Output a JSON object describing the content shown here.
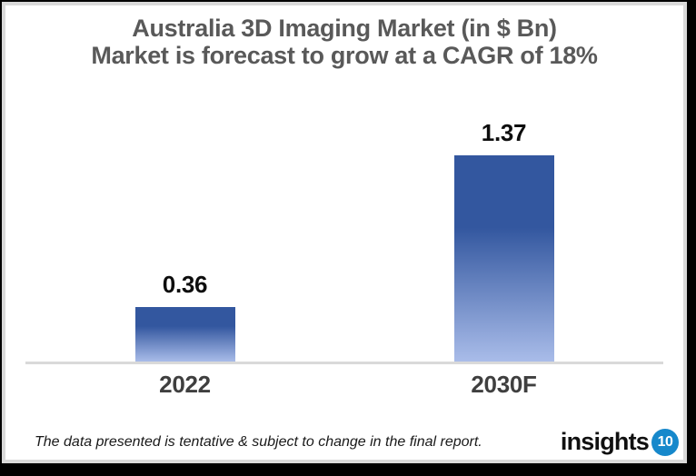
{
  "title": {
    "line1": "Australia 3D Imaging Market (in $ Bn)",
    "line2": "Market is forecast to grow at a CAGR of 18%"
  },
  "chart_data": {
    "type": "bar",
    "title": "Australia 3D Imaging Market (in $ Bn)",
    "subtitle": "Market is forecast to grow at a CAGR of 18%",
    "categories": [
      "2022",
      "2030F"
    ],
    "values": [
      0.36,
      1.37
    ],
    "data_labels": [
      "0.36",
      "1.37"
    ],
    "xlabel": "",
    "ylabel": "",
    "ylim": [
      0,
      1.5
    ],
    "grid": false,
    "legend": false,
    "cagr": "18%",
    "bar_color_top": "#33579f",
    "bar_color_bottom": "#a9bce9"
  },
  "footer": {
    "disclaimer": "The data presented is tentative & subject to change in the final report.",
    "logo_text": "insights",
    "logo_badge": "10"
  },
  "colors": {
    "title_text": "#595959",
    "value_label": "#0d0d0d",
    "category_label": "#3f3f3f",
    "axis_line": "#d9d9d9",
    "bar_top": "#33579f",
    "bar_bottom": "#a9bce9",
    "logo_blue": "#1688cb",
    "frame": "#000000",
    "panel_border": "#d9d9d9"
  }
}
